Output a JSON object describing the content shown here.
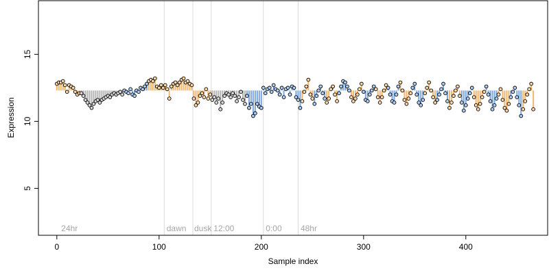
{
  "chart_data": {
    "type": "scatter",
    "title": "",
    "xlabel": "Sample index",
    "ylabel": "Expression",
    "xlim": [
      -18,
      480
    ],
    "ylim": [
      1.5,
      19.0
    ],
    "x_ticks": [
      0,
      100,
      200,
      300,
      400
    ],
    "y_ticks": [
      5,
      10,
      15
    ],
    "grid": false,
    "legend": "none",
    "annotations": [
      {
        "text": "24hr",
        "x": 3
      },
      {
        "text": "dawn",
        "x": 106
      },
      {
        "text": "dusk",
        "x": 133
      },
      {
        "text": "12:00",
        "x": 152
      },
      {
        "text": "0:00",
        "x": 203
      },
      {
        "text": "48hr",
        "x": 237
      }
    ],
    "vlines": [
      105,
      133,
      151,
      202,
      236
    ],
    "colors": {
      "point_fill_default": "#d6d6d6",
      "point_fill_light": "#fbd7a8",
      "point_fill_dark": "#aecdf2",
      "stem_light": "#f0b56e",
      "stem_dark": "#7ba7dc",
      "stem_default": "#b3b3b3",
      "vline": "#d9d9d9",
      "annotation": "#a6a6a6"
    },
    "baseline": 12.3,
    "series": [
      {
        "points": [
          [
            0,
            12.8
          ],
          [
            2,
            12.9
          ],
          [
            4,
            12.9
          ],
          [
            6,
            13.0
          ],
          [
            8,
            12.7
          ],
          [
            10,
            12.2
          ],
          [
            12,
            12.7
          ],
          [
            14,
            12.6
          ],
          [
            16,
            12.5
          ],
          [
            18,
            12.2
          ],
          [
            20,
            12.0
          ],
          [
            22,
            12.1
          ],
          [
            24,
            12.1
          ],
          [
            26,
            11.9
          ],
          [
            28,
            11.6
          ],
          [
            30,
            11.4
          ],
          [
            32,
            11.2
          ],
          [
            34,
            11.0
          ],
          [
            36,
            11.3
          ],
          [
            38,
            11.5
          ],
          [
            40,
            11.6
          ],
          [
            42,
            11.4
          ],
          [
            44,
            11.6
          ],
          [
            46,
            11.7
          ],
          [
            48,
            11.8
          ],
          [
            50,
            11.9
          ],
          [
            52,
            11.8
          ],
          [
            54,
            12.0
          ],
          [
            56,
            12.1
          ],
          [
            58,
            12.0
          ],
          [
            60,
            12.1
          ],
          [
            62,
            12.2
          ],
          [
            64,
            12.0
          ],
          [
            66,
            12.3
          ],
          [
            68,
            12.2
          ],
          [
            70,
            12.1
          ],
          [
            72,
            12.4
          ],
          [
            74,
            12.0
          ],
          [
            76,
            11.9
          ],
          [
            78,
            12.3
          ],
          [
            80,
            12.2
          ],
          [
            82,
            12.5
          ],
          [
            84,
            12.4
          ],
          [
            86,
            12.6
          ],
          [
            88,
            12.8
          ],
          [
            90,
            13.0
          ],
          [
            92,
            13.1
          ],
          [
            94,
            13.0
          ],
          [
            96,
            13.2
          ],
          [
            98,
            12.6
          ],
          [
            100,
            12.5
          ],
          [
            102,
            12.7
          ],
          [
            104,
            12.5
          ],
          [
            106,
            12.7
          ],
          [
            108,
            12.4
          ],
          [
            110,
            11.7
          ],
          [
            112,
            12.6
          ],
          [
            114,
            12.8
          ],
          [
            116,
            12.9
          ],
          [
            118,
            12.7
          ],
          [
            120,
            12.9
          ],
          [
            122,
            13.1
          ],
          [
            124,
            13.2
          ],
          [
            126,
            12.9
          ],
          [
            128,
            13.0
          ],
          [
            130,
            12.8
          ],
          [
            132,
            12.7
          ],
          [
            134,
            11.7
          ],
          [
            136,
            11.2
          ],
          [
            138,
            11.4
          ],
          [
            140,
            11.9
          ],
          [
            142,
            12.1
          ],
          [
            144,
            11.8
          ],
          [
            146,
            12.4
          ],
          [
            148,
            11.7
          ],
          [
            150,
            12.0
          ],
          [
            152,
            11.6
          ],
          [
            154,
            11.8
          ],
          [
            156,
            11.4
          ],
          [
            158,
            11.7
          ],
          [
            160,
            10.9
          ],
          [
            162,
            11.4
          ],
          [
            164,
            11.9
          ],
          [
            166,
            12.1
          ],
          [
            168,
            12.0
          ],
          [
            170,
            11.8
          ],
          [
            172,
            12.1
          ],
          [
            174,
            11.9
          ],
          [
            176,
            11.5
          ],
          [
            178,
            11.8
          ],
          [
            180,
            12.2
          ],
          [
            182,
            11.6
          ],
          [
            184,
            11.3
          ],
          [
            186,
            11.9
          ],
          [
            188,
            11.0
          ],
          [
            190,
            11.3
          ],
          [
            192,
            10.4
          ],
          [
            194,
            10.6
          ],
          [
            196,
            11.3
          ],
          [
            198,
            11.1
          ],
          [
            200,
            11.0
          ],
          [
            202,
            12.5
          ],
          [
            204,
            12.1
          ],
          [
            206,
            12.4
          ],
          [
            208,
            12.5
          ],
          [
            210,
            12.2
          ],
          [
            212,
            12.7
          ],
          [
            214,
            12.4
          ],
          [
            216,
            12.3
          ],
          [
            218,
            12.0
          ],
          [
            220,
            12.5
          ],
          [
            222,
            11.8
          ],
          [
            224,
            12.4
          ],
          [
            226,
            12.5
          ],
          [
            228,
            12.0
          ],
          [
            230,
            12.6
          ],
          [
            232,
            12.5
          ],
          [
            234,
            11.8
          ],
          [
            236,
            11.6
          ],
          [
            238,
            11.0
          ],
          [
            240,
            11.5
          ],
          [
            242,
            12.2
          ],
          [
            244,
            12.6
          ],
          [
            246,
            13.1
          ],
          [
            248,
            12.0
          ],
          [
            250,
            11.7
          ],
          [
            252,
            11.3
          ],
          [
            254,
            11.9
          ],
          [
            256,
            12.3
          ],
          [
            258,
            12.6
          ],
          [
            260,
            12.1
          ],
          [
            262,
            11.7
          ],
          [
            264,
            11.4
          ],
          [
            266,
            11.7
          ],
          [
            268,
            12.4
          ],
          [
            270,
            12.6
          ],
          [
            272,
            12.0
          ],
          [
            274,
            11.5
          ],
          [
            276,
            12.1
          ],
          [
            278,
            12.6
          ],
          [
            280,
            13.0
          ],
          [
            282,
            12.9
          ],
          [
            284,
            12.6
          ],
          [
            286,
            12.3
          ],
          [
            288,
            11.8
          ],
          [
            290,
            11.5
          ],
          [
            292,
            11.7
          ],
          [
            294,
            12.0
          ],
          [
            296,
            12.4
          ],
          [
            298,
            12.8
          ],
          [
            300,
            12.2
          ],
          [
            302,
            11.6
          ],
          [
            304,
            11.5
          ],
          [
            306,
            12.0
          ],
          [
            308,
            12.3
          ],
          [
            310,
            12.6
          ],
          [
            312,
            12.4
          ],
          [
            314,
            11.8
          ],
          [
            316,
            11.4
          ],
          [
            318,
            11.8
          ],
          [
            320,
            12.3
          ],
          [
            322,
            12.7
          ],
          [
            324,
            12.5
          ],
          [
            326,
            12.0
          ],
          [
            328,
            11.5
          ],
          [
            330,
            11.4
          ],
          [
            332,
            12.0
          ],
          [
            334,
            12.6
          ],
          [
            336,
            12.9
          ],
          [
            338,
            12.3
          ],
          [
            340,
            11.6
          ],
          [
            342,
            11.3
          ],
          [
            344,
            11.7
          ],
          [
            346,
            12.1
          ],
          [
            348,
            12.5
          ],
          [
            350,
            12.8
          ],
          [
            352,
            12.0
          ],
          [
            354,
            11.4
          ],
          [
            356,
            11.2
          ],
          [
            358,
            11.6
          ],
          [
            360,
            12.1
          ],
          [
            362,
            12.5
          ],
          [
            364,
            12.9
          ],
          [
            366,
            12.3
          ],
          [
            368,
            11.8
          ],
          [
            370,
            11.4
          ],
          [
            372,
            11.6
          ],
          [
            374,
            12.0
          ],
          [
            376,
            12.4
          ],
          [
            378,
            12.8
          ],
          [
            380,
            12.1
          ],
          [
            382,
            11.5
          ],
          [
            384,
            11.0
          ],
          [
            386,
            11.4
          ],
          [
            388,
            11.9
          ],
          [
            390,
            12.3
          ],
          [
            392,
            12.6
          ],
          [
            394,
            11.9
          ],
          [
            396,
            11.4
          ],
          [
            398,
            10.8
          ],
          [
            400,
            11.2
          ],
          [
            402,
            11.7
          ],
          [
            404,
            12.1
          ],
          [
            406,
            12.5
          ],
          [
            408,
            11.8
          ],
          [
            410,
            11.2
          ],
          [
            412,
            10.9
          ],
          [
            414,
            11.3
          ],
          [
            416,
            11.8
          ],
          [
            418,
            12.2
          ],
          [
            420,
            12.6
          ],
          [
            422,
            12.0
          ],
          [
            424,
            11.5
          ],
          [
            426,
            10.9
          ],
          [
            428,
            11.2
          ],
          [
            430,
            11.7
          ],
          [
            432,
            12.0
          ],
          [
            434,
            12.4
          ],
          [
            436,
            11.6
          ],
          [
            438,
            11.0
          ],
          [
            440,
            10.8
          ],
          [
            442,
            11.3
          ],
          [
            444,
            11.8
          ],
          [
            446,
            12.2
          ],
          [
            448,
            12.5
          ],
          [
            450,
            11.8
          ],
          [
            452,
            11.2
          ],
          [
            454,
            10.4
          ],
          [
            456,
            10.9
          ],
          [
            458,
            11.5
          ],
          [
            460,
            12.0
          ],
          [
            462,
            12.4
          ],
          [
            464,
            12.8
          ],
          [
            466,
            10.9
          ]
        ]
      }
    ]
  }
}
